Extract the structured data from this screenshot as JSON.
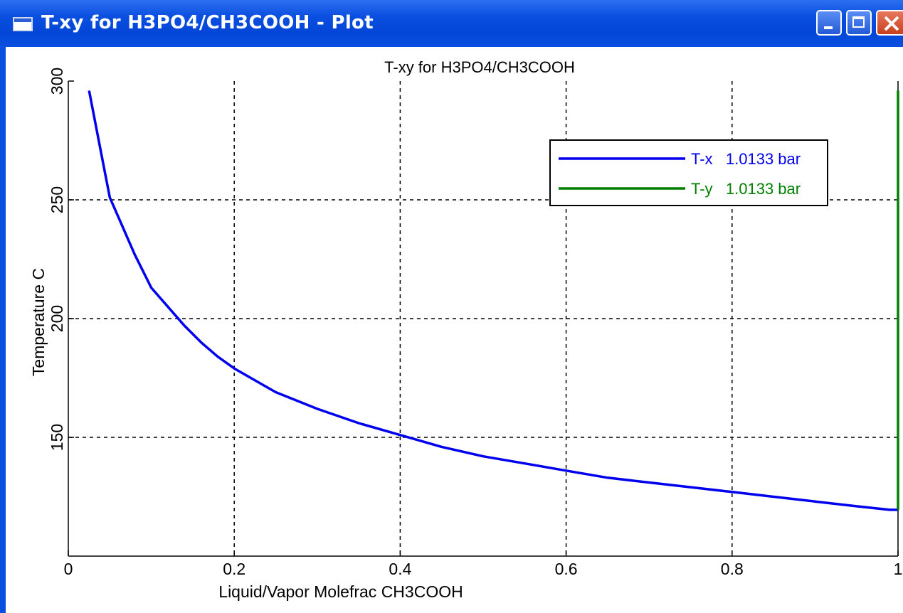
{
  "window": {
    "title": "T-xy for H3PO4/CH3COOH - Plot",
    "controls": [
      "minimize",
      "maximize",
      "close"
    ]
  },
  "chart_data": {
    "type": "line",
    "title": "T-xy for H3PO4/CH3COOH",
    "xlabel": "Liquid/Vapor Molefrac CH3COOH",
    "ylabel": "Temperature  C",
    "xlim": [
      0,
      1
    ],
    "ylim": [
      100,
      300
    ],
    "x_ticks": [
      "0",
      "0.2",
      "0.4",
      "0.6",
      "0.8",
      "1"
    ],
    "y_ticks": [
      "150",
      "200",
      "250",
      "300"
    ],
    "grid": true,
    "legend_position": "top-right",
    "series": [
      {
        "name": "T-x   1.0133 bar",
        "color": "#0000ee",
        "x": [
          0.025,
          0.04,
          0.05,
          0.06,
          0.08,
          0.1,
          0.12,
          0.14,
          0.16,
          0.18,
          0.2,
          0.25,
          0.3,
          0.35,
          0.4,
          0.45,
          0.5,
          0.55,
          0.6,
          0.65,
          0.7,
          0.75,
          0.8,
          0.85,
          0.9,
          0.95,
          0.99,
          1.0
        ],
        "y": [
          296,
          269,
          251,
          243,
          227,
          213,
          205,
          197,
          190,
          184,
          179,
          169,
          162,
          156,
          151,
          146,
          142,
          139,
          136,
          133,
          131,
          129,
          127,
          125,
          123,
          121,
          119.5,
          119.5
        ]
      },
      {
        "name": "T-y   1.0133 bar",
        "color": "#008000",
        "x": [
          1.0,
          1.0
        ],
        "y": [
          119.5,
          296
        ]
      }
    ]
  }
}
